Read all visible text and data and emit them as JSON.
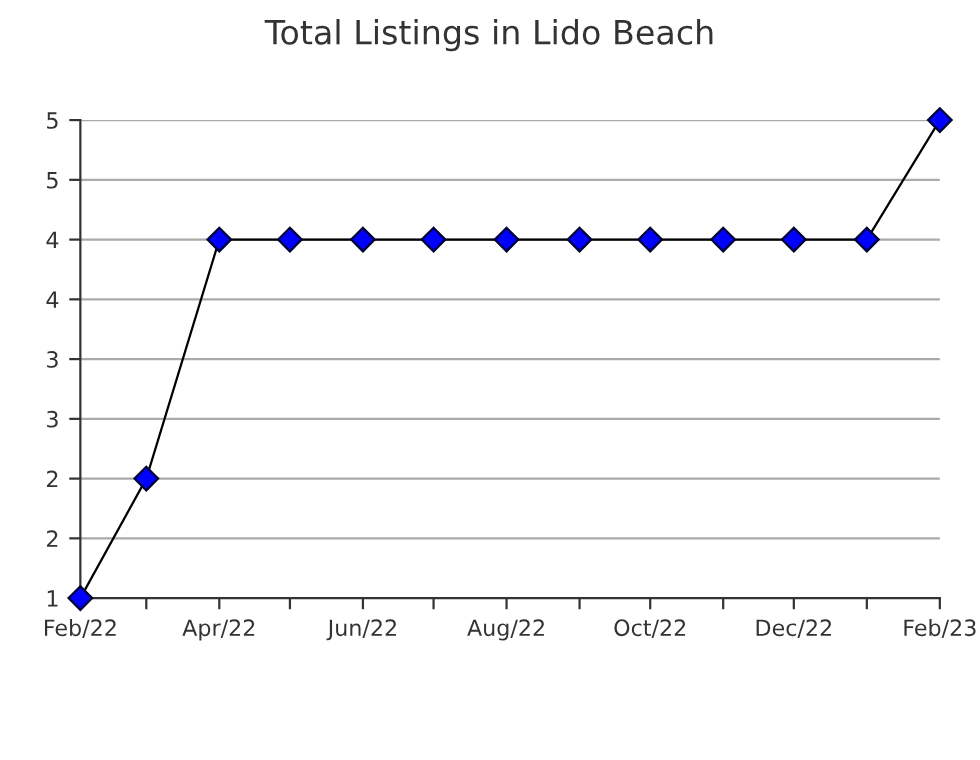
{
  "chart_data": {
    "type": "line",
    "title": "Total Listings in Lido Beach",
    "x": [
      "2022-02",
      "2022-03",
      "2022-04",
      "2022-05",
      "2022-06",
      "2022-07",
      "2022-08",
      "2022-09",
      "2022-10",
      "2022-11",
      "2022-12",
      "2023-01",
      "2023-02"
    ],
    "series": [
      {
        "color": "#0000ff",
        "values": [
          1,
          2,
          4,
          4,
          4,
          4,
          4,
          4,
          4,
          4,
          4,
          4,
          5
        ]
      }
    ],
    "xlim": [
      "2022-02",
      "2023-02"
    ],
    "xticks": [
      {
        "value": "2022-02",
        "label": "Feb/22"
      },
      {
        "value": "2022-03",
        "label": null
      },
      {
        "value": "2022-04",
        "label": "Apr/22"
      },
      {
        "value": "2022-05",
        "label": null
      },
      {
        "value": "2022-06",
        "label": "Jun/22"
      },
      {
        "value": "2022-07",
        "label": null
      },
      {
        "value": "2022-08",
        "label": "Aug/22"
      },
      {
        "value": "2022-09",
        "label": null
      },
      {
        "value": "2022-10",
        "label": "Oct/22"
      },
      {
        "value": "2022-11",
        "label": null
      },
      {
        "value": "2022-12",
        "label": "Dec/22"
      },
      {
        "value": "2023-01",
        "label": null
      },
      {
        "value": "2023-02",
        "label": "Feb/23"
      }
    ],
    "ylim": [
      1,
      5
    ],
    "yticks": [
      1,
      {
        "value": 1.5,
        "label": "2"
      },
      2,
      {
        "value": 2.5,
        "label": "3"
      },
      3,
      {
        "value": 3.5,
        "label": "4"
      },
      4,
      {
        "value": 4.5,
        "label": "5"
      },
      5
    ],
    "grid": "y",
    "marker": "diamond",
    "line_style": "solid"
  }
}
